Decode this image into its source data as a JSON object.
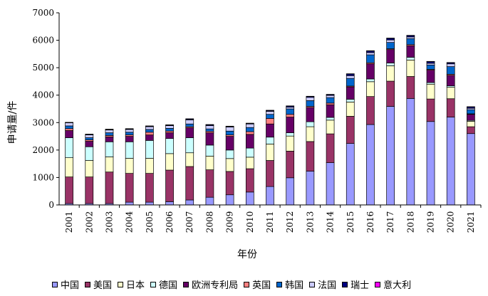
{
  "chart_data": {
    "type": "bar",
    "stacked": true,
    "title": "",
    "xlabel": "年份",
    "ylabel": "申请量/件",
    "ylim": [
      0,
      7000
    ],
    "yticks": [
      0,
      1000,
      2000,
      3000,
      4000,
      5000,
      6000,
      7000
    ],
    "legend_position": "bottom",
    "categories": [
      "2001",
      "2002",
      "2003",
      "2004",
      "2005",
      "2006",
      "2007",
      "2008",
      "2009",
      "2010",
      "2011",
      "2012",
      "2013",
      "2014",
      "2015",
      "2016",
      "2017",
      "2018",
      "2019",
      "2020",
      "2021"
    ],
    "series": [
      {
        "name": "中国",
        "color": "#9999ff",
        "values": [
          50,
          50,
          50,
          100,
          100,
          120,
          180,
          280,
          370,
          470,
          670,
          990,
          1230,
          1540,
          2240,
          2930,
          3590,
          3880,
          3040,
          3200,
          2600
        ]
      },
      {
        "name": "美国",
        "color": "#993366",
        "values": [
          970,
          970,
          1150,
          1050,
          1050,
          1150,
          1220,
          1000,
          850,
          850,
          950,
          970,
          1080,
          1050,
          990,
          1020,
          920,
          800,
          820,
          670,
          250
        ]
      },
      {
        "name": "日本",
        "color": "#ffffcc",
        "values": [
          700,
          600,
          550,
          550,
          550,
          600,
          500,
          500,
          470,
          420,
          600,
          550,
          540,
          500,
          520,
          540,
          560,
          600,
          540,
          420,
          200
        ]
      },
      {
        "name": "德国",
        "color": "#ccffff",
        "values": [
          730,
          500,
          550,
          600,
          650,
          550,
          550,
          400,
          310,
          330,
          250,
          120,
          180,
          100,
          100,
          100,
          100,
          100,
          60,
          50,
          30
        ]
      },
      {
        "name": "欧洲专利局",
        "color": "#660066",
        "values": [
          260,
          200,
          180,
          200,
          200,
          210,
          360,
          450,
          500,
          500,
          480,
          570,
          520,
          460,
          450,
          550,
          490,
          420,
          450,
          380,
          220
        ]
      },
      {
        "name": "英国",
        "color": "#ff8080",
        "values": [
          70,
          50,
          50,
          50,
          100,
          60,
          40,
          50,
          50,
          100,
          200,
          100,
          40,
          60,
          30,
          40,
          30,
          40,
          30,
          40,
          20
        ]
      },
      {
        "name": "韩国",
        "color": "#0066cc",
        "values": [
          100,
          80,
          100,
          100,
          100,
          100,
          100,
          90,
          140,
          150,
          150,
          200,
          210,
          200,
          280,
          290,
          230,
          220,
          160,
          280,
          150
        ]
      },
      {
        "name": "法国",
        "color": "#ccccff",
        "values": [
          110,
          100,
          100,
          100,
          100,
          100,
          150,
          120,
          150,
          130,
          110,
          60,
          120,
          80,
          100,
          80,
          90,
          60,
          60,
          100,
          50
        ]
      },
      {
        "name": "瑞士",
        "color": "#000080",
        "values": [
          10,
          20,
          20,
          20,
          20,
          20,
          30,
          30,
          20,
          20,
          30,
          40,
          30,
          30,
          60,
          60,
          60,
          50,
          60,
          40,
          50
        ]
      },
      {
        "name": "意大利",
        "color": "#ff00ff",
        "values": [
          10,
          10,
          10,
          10,
          10,
          10,
          10,
          10,
          10,
          10,
          10,
          10,
          10,
          10,
          10,
          10,
          10,
          10,
          10,
          10,
          10
        ]
      }
    ]
  }
}
